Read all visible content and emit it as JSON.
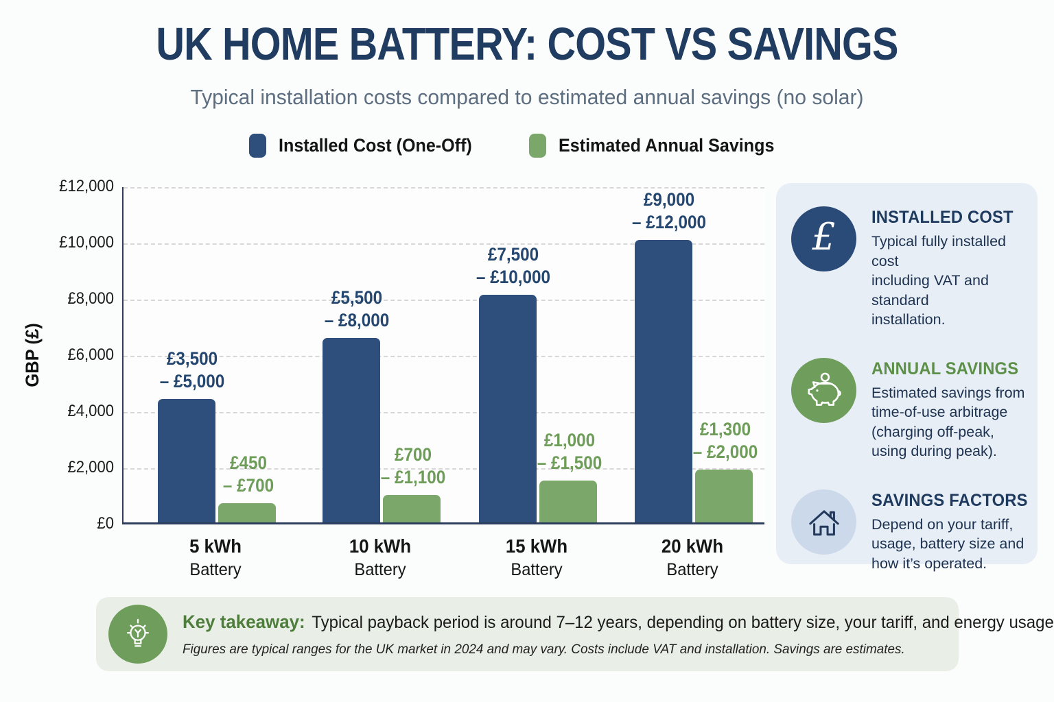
{
  "page": {
    "title": "UK HOME BATTERY: COST VS SAVINGS",
    "subtitle": "Typical installation costs compared to estimated annual savings (no solar)"
  },
  "legend": [
    {
      "label": "Installed Cost (One-Off)",
      "color": "#2e4e7c"
    },
    {
      "label": "Estimated Annual Savings",
      "color": "#7ba86a"
    }
  ],
  "chart_data": {
    "type": "bar",
    "ylabel": "GBP (£)",
    "ylim": [
      0,
      12000
    ],
    "ytick_step": 2000,
    "yticks": [
      "£0",
      "£2,000",
      "£4,000",
      "£6,000",
      "£8,000",
      "£10,000",
      "£12,000"
    ],
    "grid": "horizontal-dashed",
    "categories": [
      "5 kWh",
      "10 kWh",
      "15 kWh",
      "20 kWh"
    ],
    "category_subtitle": "Battery",
    "series": [
      {
        "name": "Installed Cost (One-Off)",
        "color": "#2e4e7c",
        "label_color": "#24466f",
        "values": [
          4400,
          6550,
          8100,
          10050
        ],
        "range_labels": [
          [
            "£3,500",
            "– £5,000"
          ],
          [
            "£5,500",
            "– £8,000"
          ],
          [
            "£7,500",
            "– £10,000"
          ],
          [
            "£9,000",
            "– £12,000"
          ]
        ]
      },
      {
        "name": "Estimated Annual Savings",
        "color": "#7ba86a",
        "label_color": "#6e9c59",
        "values": [
          680,
          975,
          1500,
          1870
        ],
        "range_labels": [
          [
            "£450",
            "– £700"
          ],
          [
            "£700",
            "– £1,100"
          ],
          [
            "£1,000",
            "– £1,500"
          ],
          [
            "£1,300",
            "– £2,000"
          ]
        ]
      }
    ]
  },
  "sidebar": {
    "items": [
      {
        "icon": "pound-icon",
        "icon_bg": "#2a4a78",
        "title": "INSTALLED COST",
        "title_color": "#1e3a5e",
        "body": [
          "Typical fully installed cost",
          "including VAT and standard",
          "installation."
        ]
      },
      {
        "icon": "piggy-bank-icon",
        "icon_bg": "#6f9e5c",
        "title": "ANNUAL SAVINGS",
        "title_color": "#5c8f47",
        "body": [
          "Estimated savings from",
          "time-of-use arbitrage",
          "(charging off-peak,",
          "using during peak)."
        ]
      },
      {
        "icon": "house-icon",
        "icon_bg": "#ccd9ea",
        "title": "SAVINGS FACTORS",
        "title_color": "#1e3a5e",
        "body": [
          "Depend on your tariff,",
          "usage, battery size and",
          "how it’s operated."
        ]
      }
    ]
  },
  "takeaway": {
    "icon": "lightbulb-icon",
    "label": "Key takeaway:",
    "text": "Typical payback period is around 7–12 years, depending on battery size, your tariff, and energy usage.",
    "footnote": "Figures are typical ranges for the UK market in 2024 and may vary. Costs include VAT and installation. Savings are estimates."
  }
}
